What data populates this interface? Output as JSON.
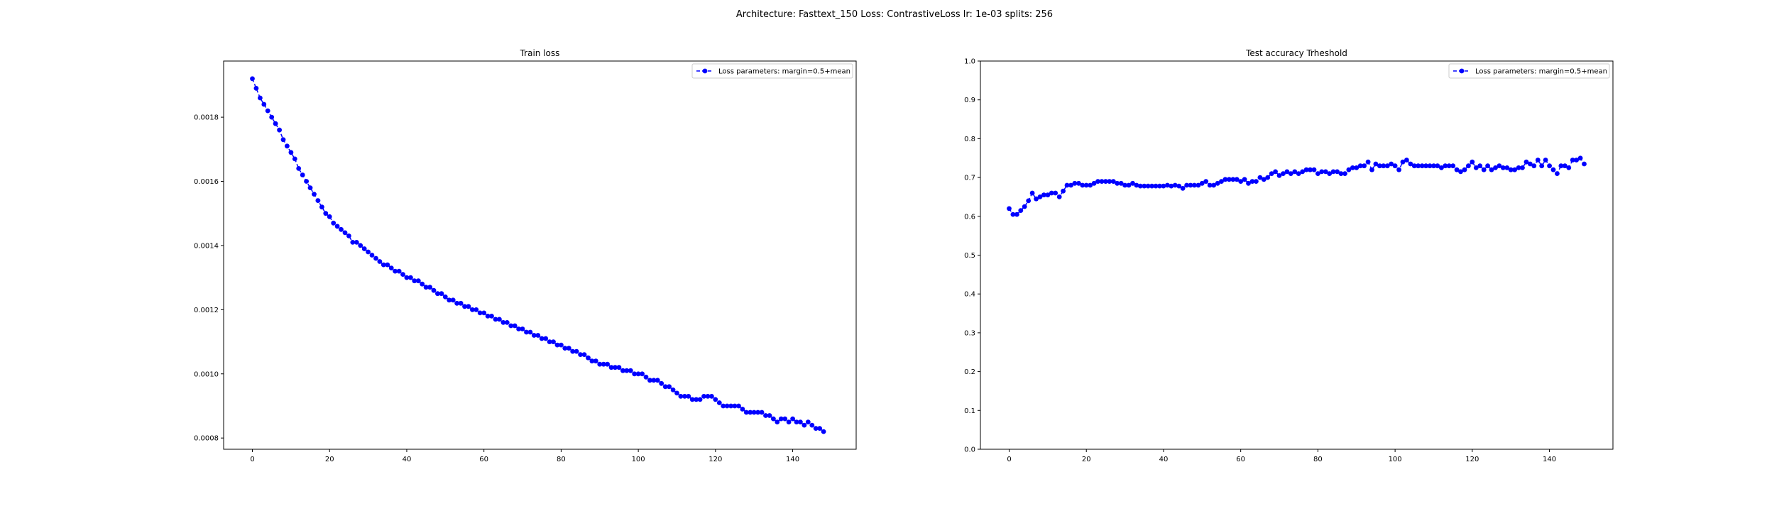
{
  "figure": {
    "suptitle": "Architecture: Fasttext_150 Loss: ContrastiveLoss lr: 1e-03 splits: 256"
  },
  "chart_data": [
    {
      "type": "line",
      "title": "Train loss",
      "xlabel": "",
      "ylabel": "",
      "xlim": [
        -7.45,
        156.45
      ],
      "ylim": [
        0.000765,
        0.001975
      ],
      "xticks": [
        0,
        20,
        40,
        60,
        80,
        100,
        120,
        140
      ],
      "yticks": [
        0.0008,
        0.001,
        0.0012,
        0.0014,
        0.0016,
        0.0018
      ],
      "ytick_labels": [
        "0.0008",
        "0.0010",
        "0.0012",
        "0.0014",
        "0.0016",
        "0.0018"
      ],
      "legend_position": "top-right",
      "grid": false,
      "color": "#0000ff",
      "series": [
        {
          "name": "Loss parameters: margin=0.5+mean",
          "x_start": 0,
          "x_step": 1,
          "values": [
            0.00192,
            0.00189,
            0.00186,
            0.00184,
            0.00182,
            0.0018,
            0.00178,
            0.00176,
            0.00173,
            0.00171,
            0.00169,
            0.00167,
            0.00164,
            0.00162,
            0.0016,
            0.00158,
            0.00156,
            0.00154,
            0.00152,
            0.0015,
            0.00149,
            0.00147,
            0.00146,
            0.00145,
            0.00144,
            0.00143,
            0.00141,
            0.00141,
            0.0014,
            0.00139,
            0.00138,
            0.00137,
            0.00136,
            0.00135,
            0.00134,
            0.00134,
            0.00133,
            0.00132,
            0.00132,
            0.00131,
            0.0013,
            0.0013,
            0.00129,
            0.00129,
            0.00128,
            0.00127,
            0.00127,
            0.00126,
            0.00125,
            0.00125,
            0.00124,
            0.00123,
            0.00123,
            0.00122,
            0.00122,
            0.00121,
            0.00121,
            0.0012,
            0.0012,
            0.00119,
            0.00119,
            0.00118,
            0.00118,
            0.00117,
            0.00117,
            0.00116,
            0.00116,
            0.00115,
            0.00115,
            0.00114,
            0.00114,
            0.00113,
            0.00113,
            0.00112,
            0.00112,
            0.00111,
            0.00111,
            0.0011,
            0.0011,
            0.00109,
            0.00109,
            0.00108,
            0.00108,
            0.00107,
            0.00107,
            0.00106,
            0.00106,
            0.00105,
            0.00104,
            0.00104,
            0.00103,
            0.00103,
            0.00103,
            0.00102,
            0.00102,
            0.00102,
            0.00101,
            0.00101,
            0.00101,
            0.001,
            0.001,
            0.001,
            0.00099,
            0.00098,
            0.00098,
            0.00098,
            0.00097,
            0.00096,
            0.00096,
            0.00095,
            0.00094,
            0.00093,
            0.00093,
            0.00093,
            0.00092,
            0.00092,
            0.00092,
            0.00093,
            0.00093,
            0.00093,
            0.00092,
            0.00091,
            0.0009,
            0.0009,
            0.0009,
            0.0009,
            0.0009,
            0.00089,
            0.00088,
            0.00088,
            0.00088,
            0.00088,
            0.00088,
            0.00087,
            0.00087,
            0.00086,
            0.00085,
            0.00086,
            0.00086,
            0.00085,
            0.00086,
            0.00085,
            0.00085,
            0.00084,
            0.00085,
            0.00084,
            0.00083,
            0.00083,
            0.00082
          ]
        }
      ]
    },
    {
      "type": "line",
      "title": "Test accuracy Trheshold",
      "xlabel": "",
      "ylabel": "",
      "xlim": [
        -7.45,
        156.45
      ],
      "ylim": [
        0.0,
        1.0
      ],
      "xticks": [
        0,
        20,
        40,
        60,
        80,
        100,
        120,
        140
      ],
      "yticks": [
        0.0,
        0.1,
        0.2,
        0.3,
        0.4,
        0.5,
        0.6,
        0.7,
        0.8,
        0.9,
        1.0
      ],
      "ytick_labels": [
        "0.0",
        "0.1",
        "0.2",
        "0.3",
        "0.4",
        "0.5",
        "0.6",
        "0.7",
        "0.8",
        "0.9",
        "1.0"
      ],
      "legend_position": "top-right",
      "grid": false,
      "color": "#0000ff",
      "series": [
        {
          "name": "Loss parameters: margin=0.5+mean",
          "x_start": 0,
          "x_step": 1,
          "values": [
            0.62,
            0.605,
            0.605,
            0.615,
            0.625,
            0.64,
            0.66,
            0.645,
            0.65,
            0.655,
            0.655,
            0.66,
            0.66,
            0.65,
            0.665,
            0.68,
            0.68,
            0.685,
            0.685,
            0.68,
            0.68,
            0.68,
            0.685,
            0.69,
            0.69,
            0.69,
            0.69,
            0.69,
            0.685,
            0.685,
            0.68,
            0.68,
            0.685,
            0.68,
            0.678,
            0.678,
            0.678,
            0.678,
            0.678,
            0.678,
            0.678,
            0.68,
            0.678,
            0.68,
            0.678,
            0.672,
            0.68,
            0.68,
            0.68,
            0.68,
            0.685,
            0.69,
            0.68,
            0.68,
            0.685,
            0.69,
            0.695,
            0.695,
            0.695,
            0.695,
            0.69,
            0.695,
            0.685,
            0.69,
            0.69,
            0.7,
            0.695,
            0.7,
            0.71,
            0.715,
            0.705,
            0.71,
            0.715,
            0.71,
            0.715,
            0.71,
            0.715,
            0.72,
            0.72,
            0.72,
            0.71,
            0.715,
            0.715,
            0.71,
            0.715,
            0.715,
            0.71,
            0.71,
            0.72,
            0.725,
            0.725,
            0.73,
            0.73,
            0.74,
            0.72,
            0.735,
            0.73,
            0.73,
            0.73,
            0.735,
            0.73,
            0.72,
            0.74,
            0.745,
            0.735,
            0.73,
            0.73,
            0.73,
            0.73,
            0.73,
            0.73,
            0.73,
            0.725,
            0.73,
            0.73,
            0.73,
            0.72,
            0.715,
            0.72,
            0.73,
            0.74,
            0.725,
            0.73,
            0.72,
            0.73,
            0.72,
            0.725,
            0.73,
            0.725,
            0.725,
            0.72,
            0.72,
            0.725,
            0.725,
            0.74,
            0.735,
            0.73,
            0.745,
            0.73,
            0.745,
            0.73,
            0.72,
            0.71,
            0.73,
            0.73,
            0.725,
            0.745,
            0.745,
            0.75,
            0.735
          ]
        }
      ]
    }
  ]
}
